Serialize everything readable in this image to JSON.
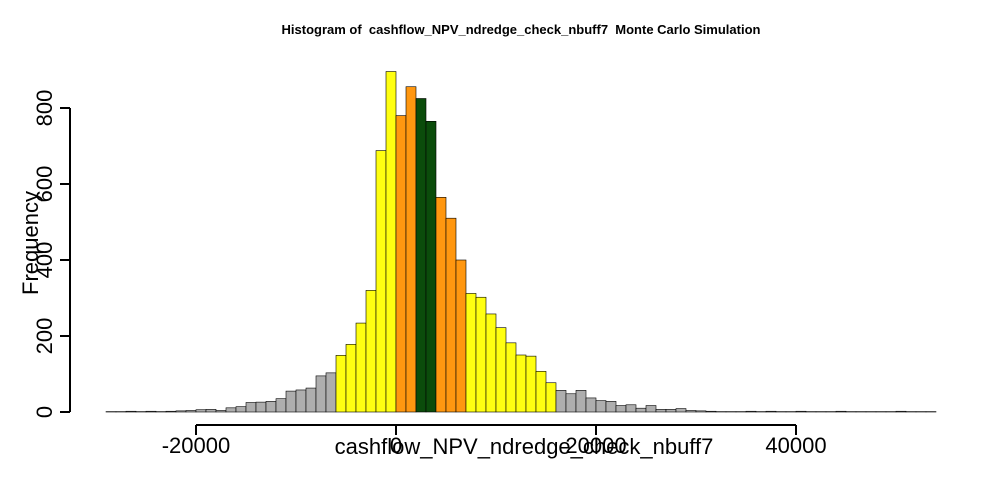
{
  "chart_data": {
    "type": "bar",
    "title": "Histogram of  cashflow_NPV_ndredge_check_nbuff7  Monte Carlo Simulation",
    "xlabel": "cashflow_NPV_ndredge_check_nbuff7",
    "ylabel": "Frequency",
    "xlim": [
      -28000,
      54000
    ],
    "ylim": [
      0,
      900
    ],
    "x_ticks": [
      -20000,
      0,
      20000,
      40000
    ],
    "x_tick_labels": [
      "-20000",
      "0",
      "20000",
      "40000"
    ],
    "y_ticks": [
      0,
      200,
      400,
      600,
      800
    ],
    "y_tick_labels": [
      "0",
      "200",
      "400",
      "600",
      "800"
    ],
    "bin_width": 1000,
    "bins_start": [
      -29000,
      -28000,
      -27000,
      -26000,
      -25000,
      -24000,
      -23000,
      -22000,
      -21000,
      -20000,
      -19000,
      -18000,
      -17000,
      -16000,
      -15000,
      -14000,
      -13000,
      -12000,
      -11000,
      -10000,
      -9000,
      -8000,
      -7000,
      -6000,
      -5000,
      -4000,
      -3000,
      -2000,
      -1000,
      0,
      1000,
      2000,
      3000,
      4000,
      5000,
      6000,
      7000,
      8000,
      9000,
      10000,
      11000,
      12000,
      13000,
      14000,
      15000,
      16000,
      17000,
      18000,
      19000,
      20000,
      21000,
      22000,
      23000,
      24000,
      25000,
      26000,
      27000,
      28000,
      29000,
      30000,
      31000,
      32000,
      33000,
      34000,
      35000,
      36000,
      37000,
      38000,
      39000,
      40000,
      41000,
      42000,
      43000,
      44000,
      45000,
      46000,
      47000,
      48000,
      49000,
      50000,
      51000,
      52000,
      53000
    ],
    "values": [
      1,
      1,
      2,
      1,
      2,
      1,
      2,
      3,
      4,
      6,
      7,
      4,
      11,
      14,
      25,
      26,
      28,
      35,
      55,
      58,
      63,
      95,
      103,
      149,
      178,
      234,
      320,
      688,
      896,
      780,
      856,
      825,
      765,
      565,
      510,
      400,
      312,
      302,
      258,
      222,
      182,
      150,
      147,
      107,
      77,
      57,
      48,
      57,
      37,
      30,
      28,
      17,
      19,
      10,
      17,
      7,
      7,
      9,
      4,
      3,
      2,
      1,
      1,
      1,
      2,
      1,
      2,
      1,
      1,
      2,
      1,
      1,
      1,
      2,
      1,
      1,
      1,
      1,
      1,
      2,
      1,
      1,
      1
    ],
    "bar_colors": {
      "tail": "#aeaeae",
      "mid": "#ffff11",
      "inner": "#ff9710",
      "center": "#0b4c0b"
    },
    "color_zones": [
      {
        "from": -29000,
        "to": -6000,
        "zone": "tail"
      },
      {
        "from": -6000,
        "to": 0,
        "zone": "mid"
      },
      {
        "from": 0,
        "to": 2000,
        "zone": "inner"
      },
      {
        "from": 2000,
        "to": 4000,
        "zone": "center"
      },
      {
        "from": 4000,
        "to": 7000,
        "zone": "inner"
      },
      {
        "from": 7000,
        "to": 16000,
        "zone": "mid"
      },
      {
        "from": 16000,
        "to": 54000,
        "zone": "tail"
      }
    ]
  }
}
